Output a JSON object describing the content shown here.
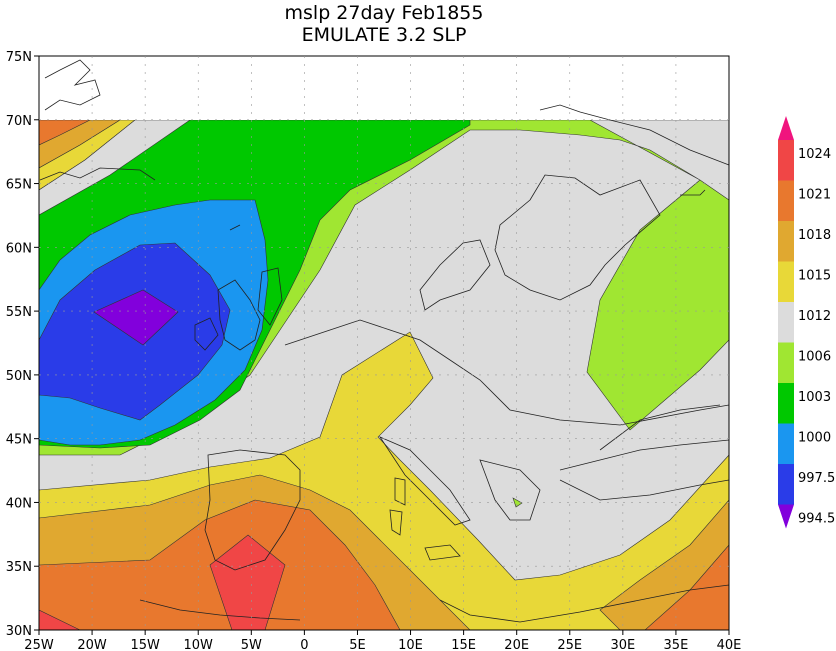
{
  "chart_data": {
    "type": "heatmap",
    "title": "mslp 27day Feb1855",
    "subtitle": "EMULATE 3.2 SLP",
    "x_ticks": [
      "25W",
      "20W",
      "15W",
      "10W",
      "5W",
      "0",
      "5E",
      "10E",
      "15E",
      "20E",
      "25E",
      "30E",
      "35E",
      "40E"
    ],
    "y_ticks": [
      "75N",
      "70N",
      "65N",
      "60N",
      "55N",
      "50N",
      "45N",
      "40N",
      "35N",
      "30N"
    ],
    "xlim": [
      -25,
      40
    ],
    "ylim": [
      30,
      75
    ],
    "data_ylim": [
      30,
      70
    ],
    "grid": true,
    "legend_position": "right",
    "colorbar": {
      "labels": [
        "1024",
        "1021",
        "1018",
        "1015",
        "1012",
        "1006",
        "1003",
        "1000",
        "997.5",
        "994.5"
      ],
      "colors": [
        "#f0147e",
        "#f04646",
        "#e8782e",
        "#e0a830",
        "#e8d838",
        "#dcdcdc",
        "#a0e632",
        "#00c800",
        "#1a96f0",
        "#2a3ce8",
        "#8200dc"
      ]
    },
    "region_colors": {
      "above_1024": "#f0147e",
      "1021_1024": "#f04646",
      "1018_1021": "#e8782e",
      "1015_1018": "#e0a830",
      "1012_1015": "#e8d838",
      "1006_1012": "#dcdcdc",
      "1003_1006": "#a0e632",
      "1000_1003": "#00c800",
      "997.5_1000": "#1a96f0",
      "994.5_997.5": "#2a3ce8",
      "below_994.5": "#8200dc"
    }
  }
}
